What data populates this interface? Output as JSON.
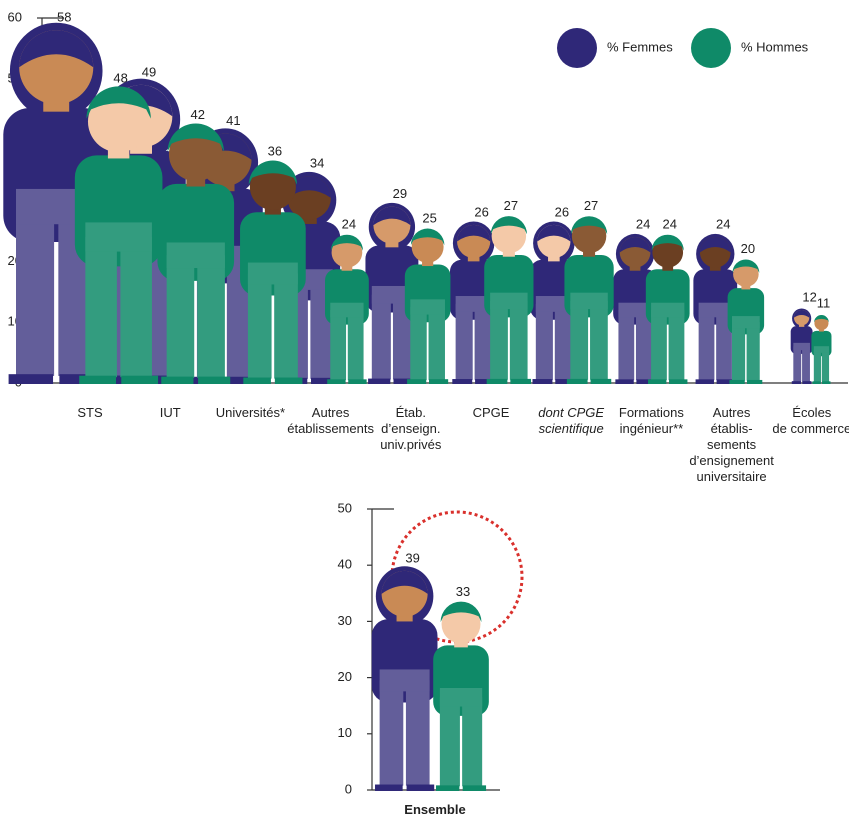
{
  "chart_data": [
    {
      "type": "bar",
      "categories": [
        "STS",
        "IUT",
        "Universités*",
        "Autres\nétablissements",
        "Étab.\nd’enseign.\nuniv.privés",
        "CPGE",
        "dont CPGE\nscientifique",
        "Formations\ningénieur**",
        "Autres\nétablis-\nsements\nd’ensignement\nuniversitaire",
        "Écoles\nde commerce"
      ],
      "series": [
        {
          "name": "% Femmes",
          "color": "#2f2878",
          "values": [
            58,
            49,
            41,
            34,
            29,
            26,
            26,
            24,
            24,
            12
          ]
        },
        {
          "name": "% Hommes",
          "color": "#0f8a68",
          "values": [
            48,
            42,
            36,
            24,
            25,
            27,
            27,
            24,
            20,
            11
          ]
        }
      ],
      "ylim": [
        0,
        60
      ],
      "yticks": [
        0,
        10,
        20,
        30,
        40,
        50,
        60
      ]
    },
    {
      "type": "bar",
      "categories": [
        "Ensemble"
      ],
      "series": [
        {
          "values": [
            39
          ]
        },
        {
          "values": [
            33
          ]
        }
      ],
      "ylim": [
        0,
        50
      ],
      "yticks": [
        0,
        10,
        20,
        30,
        40,
        50
      ]
    }
  ]
}
